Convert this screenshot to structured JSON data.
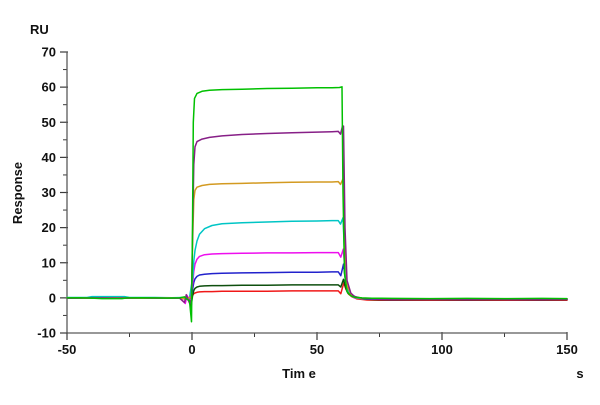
{
  "chart_data": {
    "type": "line",
    "title": "",
    "ylabel": "Response",
    "y_unit": "RU",
    "xlabel": "Tim e",
    "x_unit": "s",
    "xlim": [
      -50,
      150
    ],
    "ylim": [
      -10,
      70
    ],
    "x_ticks": [
      -50,
      0,
      50,
      100,
      150
    ],
    "x_minor_ticks": [
      -25,
      25,
      75,
      125
    ],
    "y_ticks": [
      -10,
      0,
      10,
      20,
      30,
      40,
      50,
      60,
      70
    ],
    "y_minor_ticks": [
      -5,
      5,
      15,
      25,
      35,
      45,
      55,
      65
    ],
    "grid": false,
    "legend": "none",
    "axis_color": "#5a5a5a",
    "series": [
      {
        "name": "red",
        "color": "#f01818",
        "points": [
          [
            -50,
            -0.1
          ],
          [
            -40,
            -0.05
          ],
          [
            -30,
            -0.1
          ],
          [
            -20,
            -0.05
          ],
          [
            -10,
            -0.1
          ],
          [
            -5,
            -0.1
          ],
          [
            -2,
            -0.3
          ],
          [
            -1,
            0.1
          ],
          [
            -0.3,
            -0.1
          ],
          [
            0.3,
            0.8
          ],
          [
            0.7,
            1.2
          ],
          [
            1.2,
            1.4
          ],
          [
            2,
            1.6
          ],
          [
            3,
            1.7
          ],
          [
            5,
            1.8
          ],
          [
            8,
            1.8
          ],
          [
            12,
            1.9
          ],
          [
            20,
            1.9
          ],
          [
            30,
            1.9
          ],
          [
            40,
            2
          ],
          [
            50,
            2
          ],
          [
            56,
            2
          ],
          [
            58.5,
            2
          ],
          [
            59.5,
            1.2
          ],
          [
            60.7,
            4.3
          ],
          [
            61.6,
            2.4
          ],
          [
            62.6,
            1.1
          ],
          [
            64,
            0.3
          ],
          [
            66,
            -0.3
          ],
          [
            70,
            -0.6
          ],
          [
            75,
            -0.65
          ],
          [
            85,
            -0.7
          ],
          [
            100,
            -0.65
          ],
          [
            115,
            -0.7
          ],
          [
            130,
            -0.65
          ],
          [
            150,
            -0.7
          ]
        ]
      },
      {
        "name": "dark-green",
        "color": "#0e4f0e",
        "points": [
          [
            -50,
            0
          ],
          [
            -40,
            -0.05
          ],
          [
            -30,
            0
          ],
          [
            -20,
            -0.05
          ],
          [
            -10,
            0
          ],
          [
            -5,
            -0.05
          ],
          [
            -2,
            -0.2
          ],
          [
            -1,
            -0.6
          ],
          [
            -0.4,
            -2.8
          ],
          [
            0.2,
            0.5
          ],
          [
            0.7,
            2.1
          ],
          [
            1.2,
            2.7
          ],
          [
            2,
            3.1
          ],
          [
            3,
            3.3
          ],
          [
            5,
            3.4
          ],
          [
            8,
            3.5
          ],
          [
            12,
            3.5
          ],
          [
            20,
            3.6
          ],
          [
            30,
            3.6
          ],
          [
            40,
            3.7
          ],
          [
            50,
            3.7
          ],
          [
            56,
            3.7
          ],
          [
            58.5,
            3.7
          ],
          [
            59.5,
            3.1
          ],
          [
            60.6,
            5.3
          ],
          [
            61.4,
            3
          ],
          [
            62.3,
            1.4
          ],
          [
            64,
            0.5
          ],
          [
            66,
            0
          ],
          [
            69,
            -0.35
          ],
          [
            73,
            -0.5
          ],
          [
            80,
            -0.55
          ],
          [
            95,
            -0.5
          ],
          [
            110,
            -0.55
          ],
          [
            125,
            -0.5
          ],
          [
            140,
            -0.55
          ],
          [
            150,
            -0.5
          ]
        ]
      },
      {
        "name": "blue",
        "color": "#2222cc",
        "points": [
          [
            -50,
            -0.05
          ],
          [
            -40,
            0
          ],
          [
            -30,
            0.05
          ],
          [
            -20,
            0
          ],
          [
            -10,
            0.05
          ],
          [
            -5,
            0
          ],
          [
            -2,
            -0.4
          ],
          [
            -1,
            0.2
          ],
          [
            -0.3,
            0
          ],
          [
            0.3,
            2.8
          ],
          [
            0.7,
            4.4
          ],
          [
            1.2,
            5.4
          ],
          [
            2,
            6.1
          ],
          [
            3,
            6.5
          ],
          [
            5,
            6.7
          ],
          [
            8,
            6.9
          ],
          [
            12,
            7
          ],
          [
            20,
            7.1
          ],
          [
            30,
            7.2
          ],
          [
            40,
            7.3
          ],
          [
            50,
            7.3
          ],
          [
            56,
            7.4
          ],
          [
            58.5,
            7.4
          ],
          [
            59.5,
            6.3
          ],
          [
            60.6,
            9.6
          ],
          [
            61.4,
            4.8
          ],
          [
            62.3,
            2
          ],
          [
            64,
            0.8
          ],
          [
            66,
            0.1
          ],
          [
            69,
            -0.3
          ],
          [
            73,
            -0.4
          ],
          [
            80,
            -0.45
          ],
          [
            95,
            -0.4
          ],
          [
            110,
            -0.45
          ],
          [
            125,
            -0.4
          ],
          [
            140,
            -0.45
          ],
          [
            150,
            -0.4
          ]
        ]
      },
      {
        "name": "magenta",
        "color": "#ee0eee",
        "points": [
          [
            -50,
            0
          ],
          [
            -40,
            0.05
          ],
          [
            -30,
            0
          ],
          [
            -20,
            0.05
          ],
          [
            -10,
            0
          ],
          [
            -5,
            0
          ],
          [
            -2.7,
            -1.6
          ],
          [
            -2,
            0.7
          ],
          [
            -1.3,
            -0.4
          ],
          [
            -0.5,
            0
          ],
          [
            0.3,
            4.5
          ],
          [
            0.7,
            7.5
          ],
          [
            1.2,
            9.6
          ],
          [
            2,
            11
          ],
          [
            3,
            11.8
          ],
          [
            5,
            12.3
          ],
          [
            8,
            12.5
          ],
          [
            12,
            12.6
          ],
          [
            20,
            12.7
          ],
          [
            30,
            12.8
          ],
          [
            40,
            12.8
          ],
          [
            50,
            12.9
          ],
          [
            56,
            12.9
          ],
          [
            58.5,
            12.9
          ],
          [
            59.5,
            11.6
          ],
          [
            60.5,
            13.9
          ],
          [
            61.3,
            6.5
          ],
          [
            62.2,
            2.2
          ],
          [
            63.5,
            0.7
          ],
          [
            65,
            0
          ],
          [
            68,
            -0.25
          ],
          [
            72,
            -0.3
          ],
          [
            80,
            -0.35
          ],
          [
            95,
            -0.3
          ],
          [
            110,
            -0.35
          ],
          [
            125,
            -0.3
          ],
          [
            140,
            -0.35
          ],
          [
            150,
            -0.3
          ]
        ]
      },
      {
        "name": "cyan",
        "color": "#00c5c5",
        "points": [
          [
            -50,
            0.1
          ],
          [
            -42,
            0.1
          ],
          [
            -40,
            0.35
          ],
          [
            -27,
            0.35
          ],
          [
            -25,
            0.1
          ],
          [
            -15,
            0.1
          ],
          [
            -8,
            0.05
          ],
          [
            -3,
            0.1
          ],
          [
            -1,
            0
          ],
          [
            0.3,
            6
          ],
          [
            0.7,
            10.5
          ],
          [
            1.2,
            13.5
          ],
          [
            2,
            16.2
          ],
          [
            3,
            18.1
          ],
          [
            5,
            19.7
          ],
          [
            8,
            20.6
          ],
          [
            12,
            21.1
          ],
          [
            20,
            21.4
          ],
          [
            30,
            21.6
          ],
          [
            40,
            21.8
          ],
          [
            50,
            21.9
          ],
          [
            56,
            22
          ],
          [
            58.5,
            22
          ],
          [
            59.4,
            21
          ],
          [
            60.4,
            22.8
          ],
          [
            61.2,
            9.5
          ],
          [
            62,
            2.8
          ],
          [
            63.5,
            0.8
          ],
          [
            65,
            0.1
          ],
          [
            68,
            -0.2
          ],
          [
            72,
            -0.3
          ],
          [
            80,
            -0.3
          ],
          [
            95,
            -0.35
          ],
          [
            110,
            -0.3
          ],
          [
            125,
            -0.35
          ],
          [
            140,
            -0.3
          ],
          [
            150,
            -0.35
          ]
        ]
      },
      {
        "name": "dark-yellow",
        "color": "#d39a21",
        "points": [
          [
            -50,
            0
          ],
          [
            -40,
            -0.05
          ],
          [
            -30,
            0
          ],
          [
            -20,
            -0.05
          ],
          [
            -10,
            0
          ],
          [
            -5,
            -0.05
          ],
          [
            -2,
            -0.3
          ],
          [
            -1,
            0.2
          ],
          [
            -0.2,
            0
          ],
          [
            0.3,
            18
          ],
          [
            0.7,
            28
          ],
          [
            1.2,
            30.6
          ],
          [
            2,
            31.5
          ],
          [
            4,
            32
          ],
          [
            7,
            32.3
          ],
          [
            12,
            32.5
          ],
          [
            20,
            32.6
          ],
          [
            30,
            32.8
          ],
          [
            40,
            32.9
          ],
          [
            50,
            33
          ],
          [
            56,
            33
          ],
          [
            58.5,
            33.1
          ],
          [
            59.4,
            32.3
          ],
          [
            60.4,
            33.9
          ],
          [
            61.2,
            14
          ],
          [
            62,
            3.6
          ],
          [
            63.5,
            1
          ],
          [
            65,
            0.2
          ],
          [
            68,
            -0.1
          ],
          [
            72,
            -0.2
          ],
          [
            80,
            -0.25
          ],
          [
            95,
            -0.3
          ],
          [
            110,
            -0.25
          ],
          [
            125,
            -0.3
          ],
          [
            140,
            -0.25
          ],
          [
            150,
            -0.3
          ]
        ]
      },
      {
        "name": "purple",
        "color": "#871f87",
        "points": [
          [
            -50,
            -0.05
          ],
          [
            -40,
            0
          ],
          [
            -30,
            -0.05
          ],
          [
            -20,
            0
          ],
          [
            -10,
            -0.05
          ],
          [
            -5,
            -0.05
          ],
          [
            -3,
            -1.3
          ],
          [
            -2.3,
            0.9
          ],
          [
            -1.6,
            -0.5
          ],
          [
            -0.8,
            -1.8
          ],
          [
            -0.2,
            0
          ],
          [
            0.3,
            22
          ],
          [
            0.7,
            38
          ],
          [
            1.2,
            43
          ],
          [
            2,
            44.5
          ],
          [
            4,
            45.2
          ],
          [
            7,
            45.7
          ],
          [
            12,
            46.1
          ],
          [
            20,
            46.5
          ],
          [
            30,
            46.8
          ],
          [
            40,
            47
          ],
          [
            50,
            47.2
          ],
          [
            56,
            47.3
          ],
          [
            58.5,
            47.4
          ],
          [
            59.4,
            46.6
          ],
          [
            60.2,
            48.9
          ],
          [
            60.6,
            48.9
          ],
          [
            61.2,
            20
          ],
          [
            62,
            5
          ],
          [
            63.5,
            1.4
          ],
          [
            65,
            0.4
          ],
          [
            68,
            -0.1
          ],
          [
            72,
            -0.3
          ],
          [
            80,
            -0.4
          ],
          [
            95,
            -0.45
          ],
          [
            110,
            -0.4
          ],
          [
            125,
            -0.45
          ],
          [
            140,
            -0.4
          ],
          [
            150,
            -0.45
          ]
        ]
      },
      {
        "name": "green",
        "color": "#00c000",
        "points": [
          [
            -50,
            0
          ],
          [
            -45,
            0.05
          ],
          [
            -40,
            -0.05
          ],
          [
            -36,
            -0.2
          ],
          [
            -28,
            -0.2
          ],
          [
            -26,
            0
          ],
          [
            -20,
            0.05
          ],
          [
            -15,
            0
          ],
          [
            -10,
            -0.05
          ],
          [
            -5,
            0
          ],
          [
            -3,
            0.3
          ],
          [
            -2,
            -0.4
          ],
          [
            -1,
            -0.8
          ],
          [
            -0.2,
            -6.8
          ],
          [
            0.2,
            20
          ],
          [
            0.5,
            50
          ],
          [
            1,
            56.8
          ],
          [
            2,
            58.2
          ],
          [
            4,
            58.8
          ],
          [
            7,
            59.1
          ],
          [
            12,
            59.3
          ],
          [
            20,
            59.4
          ],
          [
            30,
            59.6
          ],
          [
            40,
            59.7
          ],
          [
            50,
            59.8
          ],
          [
            56,
            59.8
          ],
          [
            59,
            59.9
          ],
          [
            60,
            60.1
          ],
          [
            60.4,
            30
          ],
          [
            61,
            7
          ],
          [
            62,
            1.8
          ],
          [
            63.5,
            0.6
          ],
          [
            65,
            0.2
          ],
          [
            68,
            0
          ],
          [
            72,
            -0.1
          ],
          [
            80,
            -0.15
          ],
          [
            95,
            -0.2
          ],
          [
            110,
            -0.15
          ],
          [
            125,
            -0.2
          ],
          [
            140,
            -0.15
          ],
          [
            150,
            -0.2
          ]
        ]
      }
    ]
  }
}
